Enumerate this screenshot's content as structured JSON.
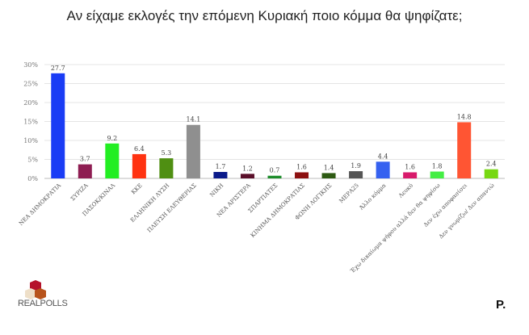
{
  "chart_data": {
    "type": "bar",
    "title": "Αν είχαμε εκλογές την επόμενη Κυριακή ποιο κόμμα θα ψηφίζατε;",
    "xlabel": "",
    "ylabel": "",
    "ylim": [
      0,
      30
    ],
    "yticks": [
      "0%",
      "5%",
      "10%",
      "15%",
      "20%",
      "25%",
      "30%"
    ],
    "grid": true,
    "categories": [
      "ΝΕΑ ΔΗΜΟΚΡΑΤΙΑ",
      "ΣΥΡΙΖΑ",
      "ΠΑΣΟΚ/ΚΙΝΑΛ",
      "ΚΚΕ",
      "ΕΛΛΗΝΙΚΗ ΛΥΣΗ",
      "ΠΛΕΥΣΗ ΕΛΕΥΘΕΡΙΑΣ",
      "ΝΙΚΗ",
      "ΝΕΑ ΑΡΙΣΤΕΡΑ",
      "ΣΠΑΡΤΙΑΤΕΣ",
      "ΚΙΝΗΜΑ ΔΗΜΟΚΡΑΤΙΑΣ",
      "ΦΩΝΗ ΛΟΓΙΚΗΣ",
      "ΜΕΡΑ25",
      "Άλλο κόμμα",
      "Λευκό",
      "Έχω δικαίωμα ψήφου αλλά δεν θα ψηφίσω",
      "Δεν έχω αποφασίσει",
      "Δεν γνωρίζω/ Δεν απαντώ"
    ],
    "values": [
      27.7,
      3.7,
      9.2,
      6.4,
      5.3,
      14.1,
      1.7,
      1.2,
      0.7,
      1.6,
      1.4,
      1.9,
      4.4,
      1.6,
      1.8,
      14.8,
      2.4
    ],
    "value_labels": [
      "27.7",
      "3.7",
      "9.2",
      "6.4",
      "5.3",
      "14.1",
      "1.7",
      "1.2",
      "0.7",
      "1.6",
      "1.4",
      "1.9",
      "4.4",
      "1.6",
      "1.8",
      "14.8",
      "2.4"
    ],
    "colors": [
      "#1a3cf5",
      "#8e1d52",
      "#22ee22",
      "#ff3311",
      "#4f8f12",
      "#8f8f8f",
      "#0a1a8a",
      "#5a0f2a",
      "#1c8c2a",
      "#8c1010",
      "#2d5a12",
      "#555555",
      "#3561f0",
      "#d81a6b",
      "#44ee44",
      "#ff5533",
      "#77d811"
    ]
  },
  "logos": {
    "left_brand": "REALPOLLS",
    "right_brand": "P."
  }
}
